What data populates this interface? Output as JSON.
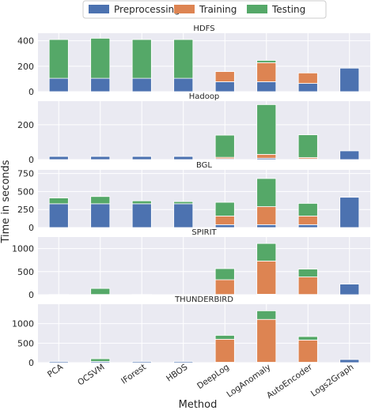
{
  "legend": {
    "placement": "top-center",
    "entries": [
      {
        "name": "Preprocessing",
        "color": "#4C72B0"
      },
      {
        "name": "Training",
        "color": "#DD8452"
      },
      {
        "name": "Testing",
        "color": "#55A868"
      }
    ]
  },
  "xlabel": "Method",
  "ylabel": "Time in seconds",
  "colors": {
    "panel_bg": "#EAEAF2",
    "grid": "#FFFFFF",
    "text": "#262626"
  },
  "chart_data": {
    "type": "bar",
    "stacked": true,
    "grid": true,
    "categories": [
      "PCA",
      "OCSVM",
      "IForest",
      "HBOS",
      "DeepLog",
      "LogAnomaly",
      "AutoEncoder",
      "Logs2Graph"
    ],
    "panels": [
      {
        "title": "HDFS",
        "ylim": [
          0,
          460
        ],
        "yticks": [
          0,
          200,
          400
        ],
        "series": [
          {
            "name": "Preprocessing",
            "values": [
              105,
              105,
              105,
              105,
              78,
              78,
              65,
              185
            ]
          },
          {
            "name": "Training",
            "values": [
              0,
              0,
              0,
              0,
              80,
              150,
              82,
              0
            ]
          },
          {
            "name": "Testing",
            "values": [
              305,
              315,
              305,
              305,
              0,
              18,
              0,
              0
            ]
          }
        ]
      },
      {
        "title": "Hadoop",
        "ylim": [
          0,
          335
        ],
        "yticks": [
          0,
          200
        ],
        "series": [
          {
            "name": "Preprocessing",
            "values": [
              18,
              18,
              18,
              18,
              5,
              8,
              4,
              50
            ]
          },
          {
            "name": "Training",
            "values": [
              0,
              0,
              0,
              0,
              8,
              22,
              8,
              0
            ]
          },
          {
            "name": "Testing",
            "values": [
              0,
              0,
              0,
              0,
              127,
              285,
              130,
              0
            ]
          }
        ]
      },
      {
        "title": "BGL",
        "ylim": [
          0,
          800
        ],
        "yticks": [
          0,
          250,
          500,
          750
        ],
        "series": [
          {
            "name": "Preprocessing",
            "values": [
              330,
              330,
              330,
              330,
              40,
              40,
              40,
              420
            ]
          },
          {
            "name": "Training",
            "values": [
              0,
              0,
              0,
              0,
              120,
              250,
              120,
              0
            ]
          },
          {
            "name": "Testing",
            "values": [
              80,
              100,
              40,
              30,
              190,
              390,
              175,
              0
            ]
          }
        ]
      },
      {
        "title": "SPIRIT",
        "ylim": [
          0,
          1250
        ],
        "yticks": [
          0,
          500,
          1000
        ],
        "series": [
          {
            "name": "Preprocessing",
            "values": [
              5,
              5,
              5,
              5,
              5,
              10,
              5,
              230
            ]
          },
          {
            "name": "Training",
            "values": [
              0,
              0,
              0,
              0,
              320,
              720,
              380,
              0
            ]
          },
          {
            "name": "Testing",
            "values": [
              0,
              130,
              0,
              0,
              240,
              380,
              170,
              0
            ]
          }
        ]
      },
      {
        "title": "THUNDERBIRD",
        "ylim": [
          0,
          1500
        ],
        "yticks": [
          0,
          500,
          1000
        ],
        "series": [
          {
            "name": "Preprocessing",
            "values": [
              30,
              30,
              30,
              30,
              10,
              10,
              10,
              80
            ]
          },
          {
            "name": "Training",
            "values": [
              0,
              0,
              0,
              0,
              590,
              1100,
              570,
              0
            ]
          },
          {
            "name": "Testing",
            "values": [
              0,
              70,
              0,
              0,
              100,
              220,
              90,
              0
            ]
          }
        ]
      }
    ]
  }
}
